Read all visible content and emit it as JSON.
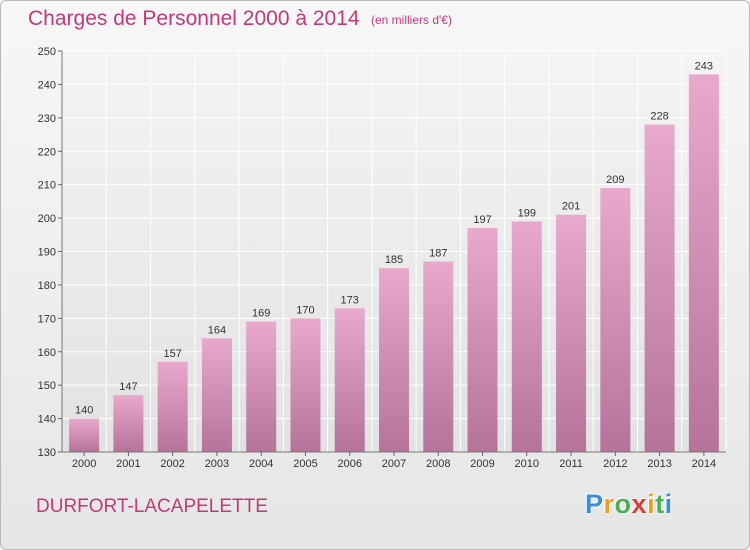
{
  "title": "Charges de Personnel 2000 à 2014",
  "unit": "(en milliers d'€)",
  "commune": "DURFORT-LACAPELETTE",
  "logo": {
    "letters": [
      "P",
      "r",
      "o",
      "x",
      "i",
      "t",
      "i"
    ],
    "colors": [
      "#3a8fd8",
      "#e8a020",
      "#4caf50",
      "#d9403a",
      "#e8a020",
      "#4caf50",
      "#3a8fd8"
    ]
  },
  "chart_data": {
    "type": "bar",
    "categories": [
      "2000",
      "2001",
      "2002",
      "2003",
      "2004",
      "2005",
      "2006",
      "2007",
      "2008",
      "2009",
      "2010",
      "2011",
      "2012",
      "2013",
      "2014"
    ],
    "values": [
      140,
      147,
      157,
      164,
      169,
      170,
      173,
      185,
      187,
      197,
      199,
      201,
      209,
      228,
      243
    ],
    "ylim": [
      130,
      250
    ],
    "yticks": [
      130,
      140,
      150,
      160,
      170,
      180,
      190,
      200,
      210,
      220,
      230,
      240,
      250
    ],
    "grid": true,
    "bar_color_top": "#e8a9cc",
    "bar_color_bottom": "#b5739a"
  }
}
